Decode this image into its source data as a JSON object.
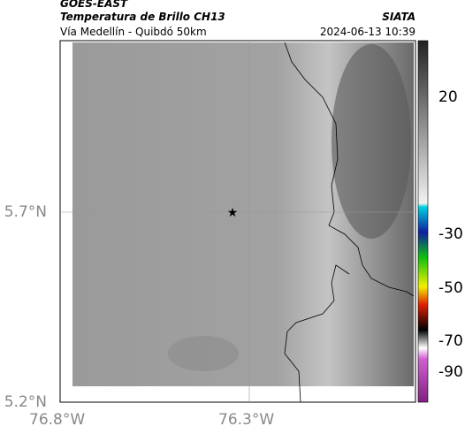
{
  "header": {
    "source": "GOES-EAST",
    "title": "Temperatura de Brillo CH13",
    "organization": "SIATA",
    "subtitle": "Vía Medellín - Quibdó 50km",
    "timestamp": "2024-06-13 10:39"
  },
  "map": {
    "lat_labels": [
      "5.7°N",
      "5.2°N"
    ],
    "lon_labels": [
      "76.8°W",
      "76.3°W"
    ]
  },
  "colorbar": {
    "ticks": [
      20,
      -30,
      -50,
      -70,
      -90
    ]
  }
}
